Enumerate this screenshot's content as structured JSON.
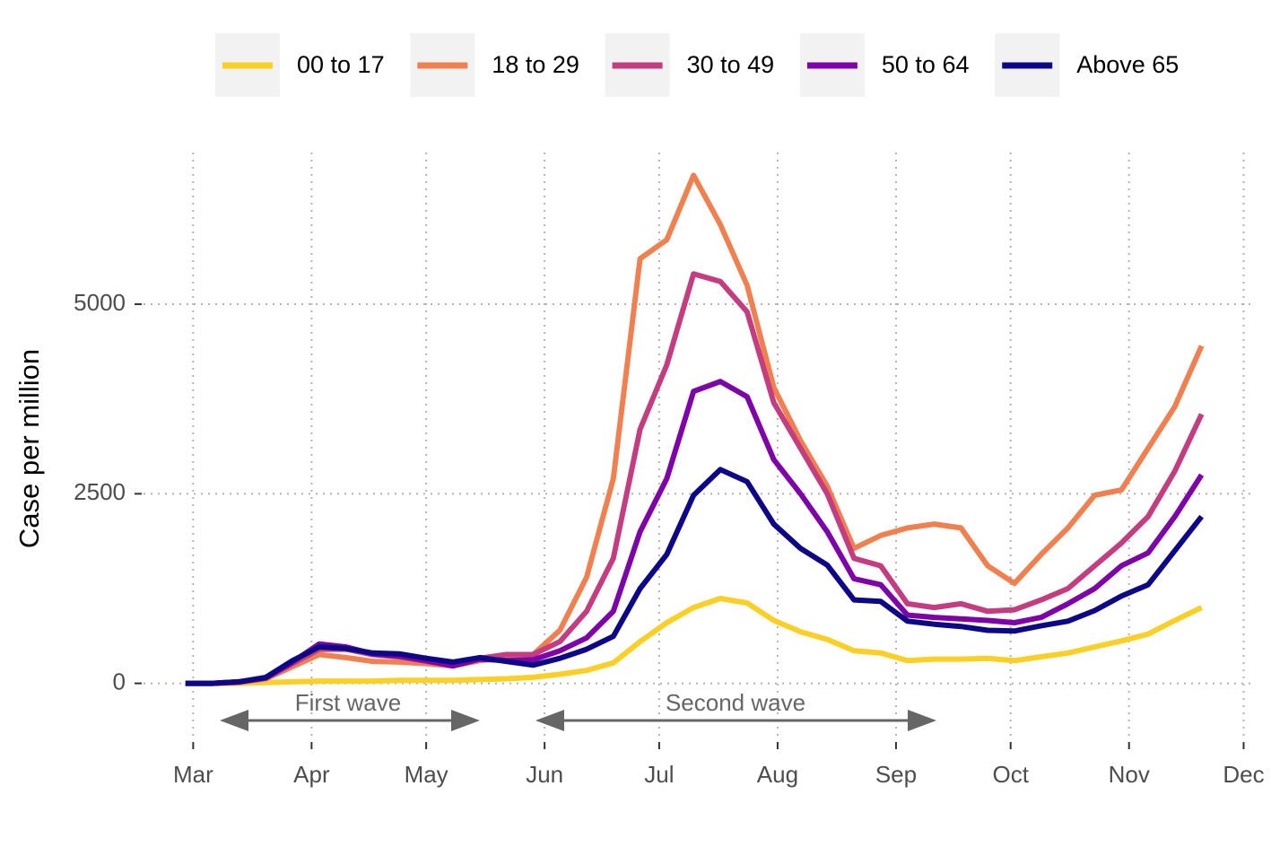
{
  "chart_data": {
    "type": "line",
    "y_label": "Case per million",
    "x": [
      -2,
      5,
      12,
      19,
      26,
      33,
      40,
      47,
      54,
      61,
      68,
      75,
      82,
      89,
      96,
      103,
      110,
      117,
      124,
      131,
      138,
      145,
      152,
      159,
      166,
      173,
      180,
      187,
      194,
      201,
      208,
      215,
      222,
      229,
      236,
      243,
      250,
      257,
      264
    ],
    "xlim": [
      -13,
      277
    ],
    "xticks": [
      {
        "value": 0,
        "label": "Mar"
      },
      {
        "value": 31,
        "label": "Apr"
      },
      {
        "value": 61,
        "label": "May"
      },
      {
        "value": 92,
        "label": "Jun"
      },
      {
        "value": 122,
        "label": "Jul"
      },
      {
        "value": 153,
        "label": "Aug"
      },
      {
        "value": 184,
        "label": "Sep"
      },
      {
        "value": 214,
        "label": "Oct"
      },
      {
        "value": 245,
        "label": "Nov"
      },
      {
        "value": 275,
        "label": "Dec"
      }
    ],
    "ylim": [
      -750,
      7000
    ],
    "yticks": [
      0,
      2500,
      5000
    ],
    "grid": true,
    "legend": "top",
    "series": [
      {
        "name": "00 to 17",
        "color": "#fccf25",
        "values": [
          0,
          0,
          0,
          10,
          20,
          30,
          30,
          30,
          40,
          40,
          40,
          50,
          60,
          80,
          120,
          170,
          270,
          550,
          800,
          1000,
          1120,
          1060,
          830,
          680,
          580,
          430,
          400,
          300,
          320,
          320,
          330,
          300,
          350,
          400,
          480,
          560,
          650,
          830,
          1000
        ]
      },
      {
        "name": "18 to 29",
        "color": "#f0804f",
        "values": [
          0,
          0,
          10,
          60,
          220,
          380,
          340,
          290,
          280,
          260,
          230,
          300,
          340,
          380,
          700,
          1400,
          2700,
          5600,
          5850,
          6700,
          6050,
          5250,
          3900,
          3200,
          2600,
          1780,
          1950,
          2050,
          2100,
          2050,
          1550,
          1320,
          1700,
          2050,
          2480,
          2550,
          3100,
          3650,
          4450
        ]
      },
      {
        "name": "30 to 49",
        "color": "#c33d80",
        "values": [
          0,
          0,
          20,
          70,
          260,
          450,
          450,
          380,
          350,
          290,
          240,
          330,
          380,
          380,
          550,
          950,
          1650,
          3350,
          4200,
          5400,
          5300,
          4900,
          3700,
          3100,
          2500,
          1650,
          1550,
          1050,
          1000,
          1050,
          950,
          970,
          1100,
          1250,
          1550,
          1850,
          2200,
          2800,
          3550
        ]
      },
      {
        "name": "50 to 64",
        "color": "#7e03a8",
        "values": [
          0,
          0,
          20,
          70,
          280,
          520,
          480,
          390,
          360,
          300,
          230,
          320,
          300,
          310,
          430,
          600,
          950,
          2000,
          2700,
          3850,
          3980,
          3780,
          2950,
          2500,
          2000,
          1380,
          1300,
          900,
          870,
          850,
          830,
          800,
          870,
          1050,
          1250,
          1550,
          1720,
          2200,
          2750
        ]
      },
      {
        "name": "Above 65",
        "color": "#0d0887",
        "values": [
          0,
          0,
          20,
          80,
          300,
          480,
          460,
          400,
          390,
          330,
          280,
          340,
          290,
          240,
          330,
          450,
          620,
          1250,
          1700,
          2480,
          2820,
          2660,
          2100,
          1780,
          1560,
          1100,
          1080,
          820,
          780,
          750,
          700,
          690,
          760,
          820,
          960,
          1150,
          1300,
          1750,
          2200
        ]
      }
    ],
    "annotations": [
      "First wave",
      "Second wave"
    ]
  }
}
